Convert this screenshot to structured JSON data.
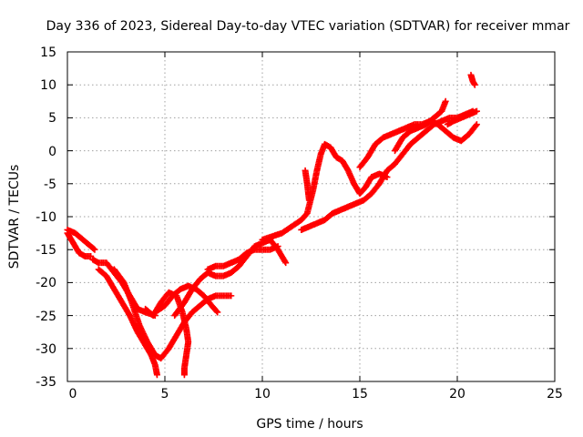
{
  "chart_data": {
    "type": "scatter",
    "title": "Day 336 of 2023, Sidereal Day-to-day VTEC variation (SDTVAR) for receiver mmar",
    "xlabel": "GPS time / hours",
    "ylabel": "SDTVAR / TECUs",
    "xlim": [
      0,
      25
    ],
    "ylim": [
      -35,
      15
    ],
    "xticks": [
      "0",
      "5",
      "10",
      "15",
      "20",
      "25"
    ],
    "yticks": [
      "15",
      "10",
      "5",
      "0",
      "-5",
      "-10",
      "-15",
      "-20",
      "-25",
      "-30",
      "-35"
    ],
    "grid": true,
    "marker": "+",
    "color": "#ff0000",
    "series": [
      {
        "points": [
          [
            0,
            -12
          ],
          [
            0.4,
            -12.5
          ],
          [
            0.8,
            -13.5
          ],
          [
            1.2,
            -14.5
          ],
          [
            1.4,
            -15
          ]
        ]
      },
      {
        "points": [
          [
            0,
            -12.5
          ],
          [
            0.3,
            -14
          ],
          [
            0.6,
            -15.5
          ],
          [
            0.9,
            -16
          ],
          [
            1.2,
            -16
          ]
        ]
      },
      {
        "points": [
          [
            1.3,
            -16.5
          ],
          [
            1.6,
            -17
          ],
          [
            2,
            -17
          ],
          [
            2.4,
            -18.5
          ],
          [
            2.8,
            -20
          ],
          [
            3.2,
            -22
          ],
          [
            3.6,
            -24
          ],
          [
            4,
            -24.5
          ],
          [
            4.5,
            -25
          ]
        ]
      },
      {
        "points": [
          [
            1.6,
            -18
          ],
          [
            2,
            -19
          ],
          [
            2.6,
            -22
          ],
          [
            3.2,
            -25
          ],
          [
            3.6,
            -27.5
          ],
          [
            4,
            -29.5
          ],
          [
            4.3,
            -31
          ],
          [
            4.5,
            -32.5
          ],
          [
            4.6,
            -34
          ]
        ]
      },
      {
        "points": [
          [
            2.4,
            -18
          ],
          [
            2.9,
            -20
          ],
          [
            3.3,
            -23
          ],
          [
            3.7,
            -26.5
          ],
          [
            4.1,
            -29
          ],
          [
            4.5,
            -31
          ],
          [
            4.8,
            -31.5
          ],
          [
            5.2,
            -30
          ],
          [
            5.6,
            -28
          ],
          [
            6,
            -26
          ],
          [
            6.4,
            -24.5
          ],
          [
            6.8,
            -23.5
          ],
          [
            7.2,
            -22.5
          ],
          [
            7.6,
            -22
          ],
          [
            8,
            -22
          ],
          [
            8.4,
            -22
          ]
        ]
      },
      {
        "points": [
          [
            4.5,
            -24.5
          ],
          [
            5,
            -23.5
          ],
          [
            5.4,
            -22
          ],
          [
            5.8,
            -21
          ],
          [
            6.2,
            -20.5
          ],
          [
            6.6,
            -21
          ],
          [
            7,
            -22
          ],
          [
            7.4,
            -23.5
          ],
          [
            7.7,
            -24.5
          ]
        ]
      },
      {
        "points": [
          [
            4,
            -24
          ],
          [
            4.4,
            -25
          ],
          [
            4.8,
            -23
          ],
          [
            5.2,
            -21.5
          ],
          [
            5.6,
            -22
          ],
          [
            5.9,
            -24.5
          ],
          [
            6.1,
            -27
          ],
          [
            6.2,
            -29
          ],
          [
            6.1,
            -31
          ],
          [
            6,
            -33
          ],
          [
            6,
            -34
          ]
        ]
      },
      {
        "points": [
          [
            5.5,
            -25
          ],
          [
            6,
            -23
          ],
          [
            6.4,
            -21
          ],
          [
            6.8,
            -19.5
          ],
          [
            7.2,
            -18.5
          ],
          [
            7.6,
            -19
          ],
          [
            8,
            -19
          ],
          [
            8.4,
            -18.5
          ],
          [
            8.8,
            -17.5
          ],
          [
            9.2,
            -16
          ],
          [
            9.6,
            -14.5
          ],
          [
            10,
            -14
          ],
          [
            10.4,
            -13.5
          ],
          [
            10.8,
            -15
          ],
          [
            11.2,
            -17
          ]
        ]
      },
      {
        "points": [
          [
            7.2,
            -18
          ],
          [
            7.6,
            -17.5
          ],
          [
            8,
            -17.5
          ],
          [
            8.4,
            -17
          ],
          [
            8.8,
            -16.5
          ],
          [
            9.2,
            -15.5
          ],
          [
            9.6,
            -15
          ],
          [
            10,
            -15
          ],
          [
            10.4,
            -15
          ],
          [
            10.8,
            -14.5
          ]
        ]
      },
      {
        "points": [
          [
            10,
            -13.5
          ],
          [
            10.5,
            -13
          ],
          [
            11,
            -12.5
          ],
          [
            11.5,
            -11.5
          ],
          [
            12,
            -10.5
          ],
          [
            12.3,
            -9.5
          ],
          [
            12.6,
            -6
          ],
          [
            12.8,
            -3
          ],
          [
            13,
            -0.5
          ],
          [
            13.2,
            1
          ],
          [
            13.5,
            0.5
          ],
          [
            13.8,
            -1
          ],
          [
            14.1,
            -1.5
          ],
          [
            14.4,
            -3
          ],
          [
            14.7,
            -5
          ],
          [
            15,
            -6.5
          ],
          [
            15.3,
            -5.5
          ],
          [
            15.6,
            -4
          ],
          [
            16,
            -3.5
          ],
          [
            16.4,
            -4
          ]
        ]
      },
      {
        "points": [
          [
            12,
            -12
          ],
          [
            12.4,
            -11.5
          ],
          [
            12.8,
            -11
          ],
          [
            13.2,
            -10.5
          ],
          [
            13.6,
            -9.5
          ],
          [
            14,
            -9
          ],
          [
            14.4,
            -8.5
          ],
          [
            14.8,
            -8
          ],
          [
            15.2,
            -7.5
          ],
          [
            15.6,
            -6.5
          ],
          [
            16,
            -5
          ],
          [
            16.4,
            -3
          ],
          [
            16.8,
            -2
          ],
          [
            17.2,
            -0.5
          ],
          [
            17.6,
            1
          ],
          [
            18,
            2
          ],
          [
            18.4,
            3
          ],
          [
            18.8,
            4
          ],
          [
            19.2,
            4.5
          ],
          [
            19.6,
            5
          ],
          [
            20,
            5
          ],
          [
            20.4,
            5.5
          ],
          [
            20.8,
            6
          ]
        ]
      },
      {
        "points": [
          [
            12.2,
            -3
          ],
          [
            12.3,
            -5
          ],
          [
            12.4,
            -7.5
          ]
        ]
      },
      {
        "points": [
          [
            15,
            -2.5
          ],
          [
            15.4,
            -1
          ],
          [
            15.8,
            1
          ],
          [
            16.2,
            2
          ],
          [
            16.6,
            2.5
          ],
          [
            17,
            3
          ],
          [
            17.4,
            3.5
          ],
          [
            17.8,
            4
          ],
          [
            18.2,
            4
          ],
          [
            18.6,
            4.5
          ],
          [
            19,
            4
          ],
          [
            19.4,
            3
          ],
          [
            19.8,
            2
          ],
          [
            20.2,
            1.5
          ],
          [
            20.6,
            2.5
          ],
          [
            21,
            4
          ]
        ]
      },
      {
        "points": [
          [
            16.8,
            0
          ],
          [
            17.2,
            2
          ],
          [
            17.6,
            3
          ],
          [
            18,
            3.5
          ],
          [
            18.4,
            4
          ],
          [
            18.8,
            5
          ],
          [
            19.2,
            6
          ],
          [
            19.4,
            7.5
          ]
        ]
      },
      {
        "points": [
          [
            19.5,
            4
          ],
          [
            19.8,
            4.5
          ],
          [
            20.2,
            5
          ],
          [
            20.6,
            5.5
          ],
          [
            21,
            6
          ]
        ]
      },
      {
        "points": [
          [
            20.7,
            11.5
          ],
          [
            20.8,
            10.5
          ],
          [
            20.9,
            10
          ]
        ]
      }
    ]
  }
}
